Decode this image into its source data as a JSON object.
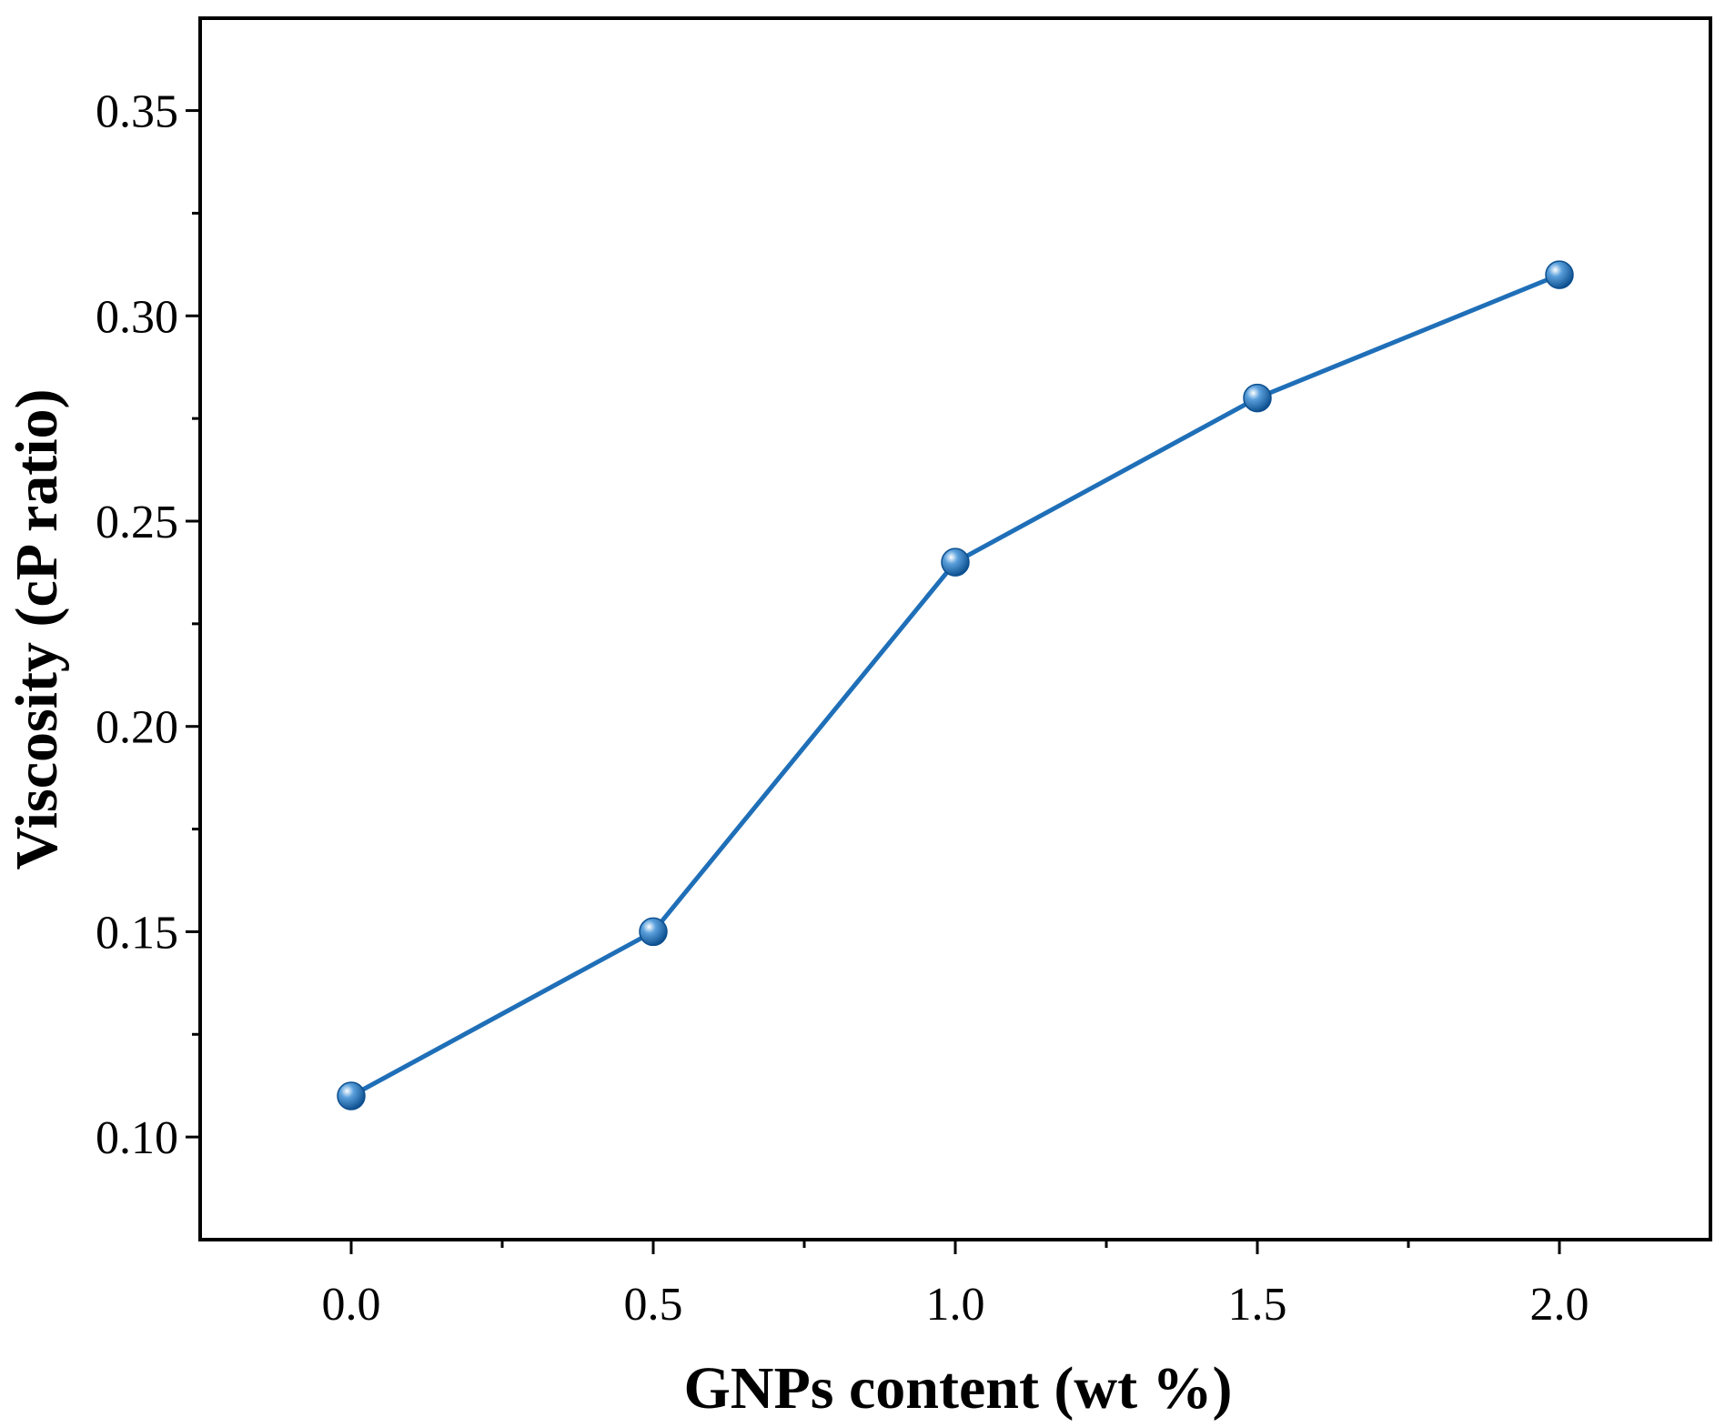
{
  "chart_data": {
    "type": "line",
    "title": "",
    "xlabel": "GNPs content (wt %)",
    "ylabel": "Viscosity (cP ratio)",
    "xlim": [
      -0.25,
      2.25
    ],
    "ylim": [
      0.075,
      0.3725
    ],
    "x_ticks": [
      0.0,
      0.5,
      1.0,
      1.5,
      2.0
    ],
    "x_tick_labels": [
      "0.0",
      "0.5",
      "1.0",
      "1.5",
      "2.0"
    ],
    "x_minor_ticks": [
      0.25,
      0.75,
      1.25,
      1.75
    ],
    "y_ticks": [
      0.1,
      0.15,
      0.2,
      0.25,
      0.3,
      0.35
    ],
    "y_tick_labels": [
      "0.10",
      "0.15",
      "0.20",
      "0.25",
      "0.30",
      "0.35"
    ],
    "y_minor_ticks": [
      0.125,
      0.175,
      0.225,
      0.275,
      0.325
    ],
    "grid": false,
    "series": [
      {
        "color": "#1f6fb8",
        "marker": "sphere",
        "x": [
          0.0,
          0.5,
          1.0,
          1.5,
          2.0
        ],
        "y": [
          0.11,
          0.15,
          0.24,
          0.28,
          0.31
        ]
      }
    ]
  }
}
